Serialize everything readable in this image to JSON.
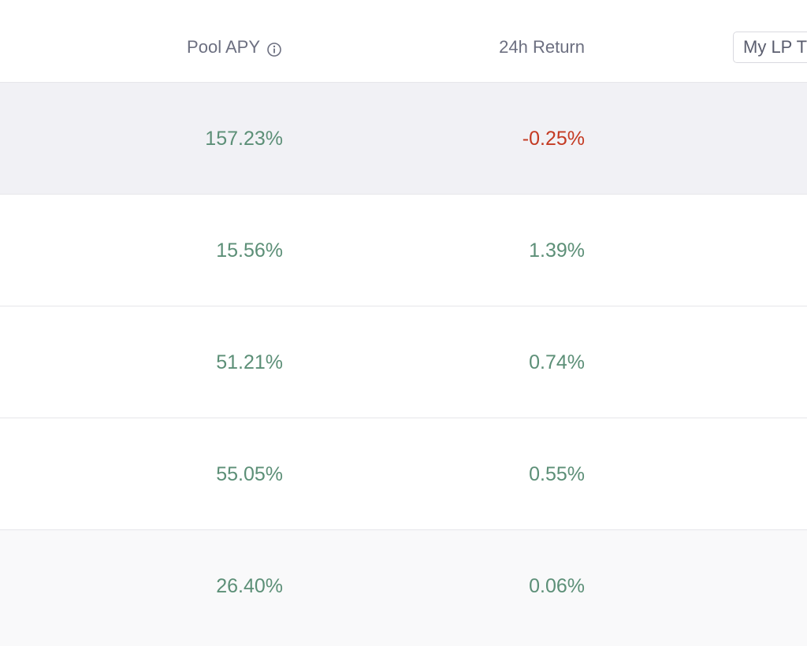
{
  "header": {
    "pool_apy_label": "Pool APY",
    "return_label": "24h Return",
    "lp_toggle_label": "My LP T"
  },
  "colors": {
    "positive": "#5c8f77",
    "negative": "#c43a22",
    "header_text": "#6c6f80",
    "row_highlight": "#f1f1f5",
    "row_alt": "#f9f9fa"
  },
  "rows": [
    {
      "apy": "157.23%",
      "return": "-0.25%",
      "return_sign": "negative"
    },
    {
      "apy": "15.56%",
      "return": "1.39%",
      "return_sign": "positive"
    },
    {
      "apy": "51.21%",
      "return": "0.74%",
      "return_sign": "positive"
    },
    {
      "apy": "55.05%",
      "return": "0.55%",
      "return_sign": "positive"
    },
    {
      "apy": "26.40%",
      "return": "0.06%",
      "return_sign": "positive"
    }
  ]
}
